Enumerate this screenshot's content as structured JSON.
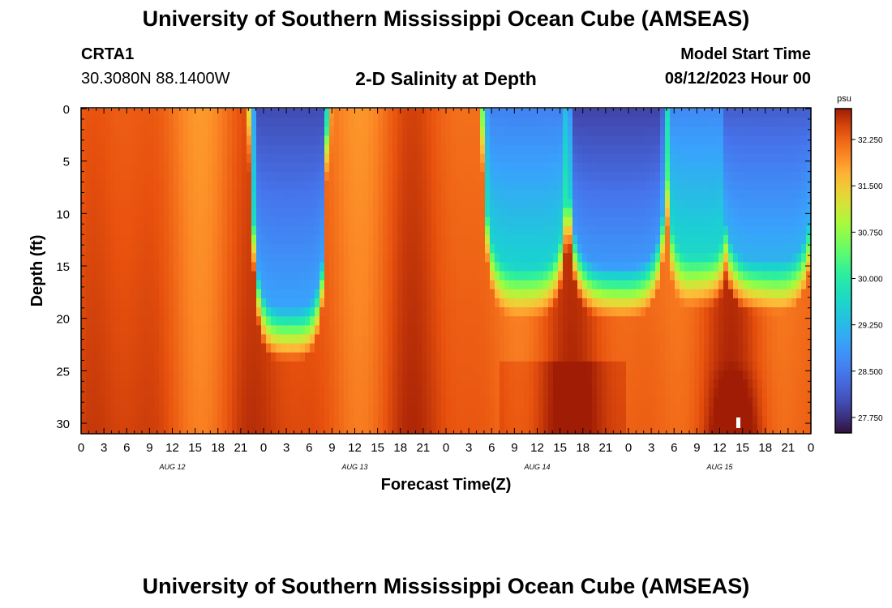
{
  "header": {
    "title": "University of Southern Mississippi Ocean Cube (AMSEAS)",
    "station": "CRTA1",
    "coords": "30.3080N  88.1400W",
    "plot_title": "2-D Salinity at Depth",
    "model_start_label": "Model Start Time",
    "model_start_value": "08/12/2023 Hour 00"
  },
  "footer": {
    "title": "University of Southern Mississippi Ocean Cube (AMSEAS)"
  },
  "chart_data": {
    "type": "heatmap",
    "title": "2-D Salinity at Depth",
    "xlabel": "Forecast Time(Z)",
    "ylabel": "Depth (ft)",
    "x_hours_range": [
      0,
      96
    ],
    "y_range_ft": [
      0,
      31
    ],
    "x_tick_labels": [
      "0",
      "3",
      "6",
      "9",
      "12",
      "15",
      "18",
      "21",
      "0",
      "3",
      "6",
      "9",
      "12",
      "15",
      "18",
      "21",
      "0",
      "3",
      "6",
      "9",
      "12",
      "15",
      "18",
      "21",
      "0",
      "3",
      "6",
      "9",
      "12",
      "15",
      "18",
      "21",
      "0"
    ],
    "y_ticks": [
      0,
      5,
      10,
      15,
      20,
      25,
      30
    ],
    "day_labels": [
      {
        "label": "AUG 12",
        "hour": 12
      },
      {
        "label": "AUG 13",
        "hour": 36
      },
      {
        "label": "AUG 14",
        "hour": 60
      },
      {
        "label": "AUG 15",
        "hour": 84
      }
    ],
    "colorbar": {
      "unit": "psu",
      "min": 27.5,
      "max": 32.75,
      "ticks": [
        27.75,
        28.5,
        29.25,
        30.0,
        30.75,
        31.5,
        32.25
      ],
      "tick_labels": [
        "27.750",
        "28.500",
        "29.250",
        "30.000",
        "30.750",
        "31.500",
        "32.250"
      ]
    },
    "notes": "Low-salinity (fresh) surface lenses near hours 20-33 and 53-96 reaching 15-20 ft depth; saline (~32-32.7 psu) water elsewhere and at depth."
  }
}
